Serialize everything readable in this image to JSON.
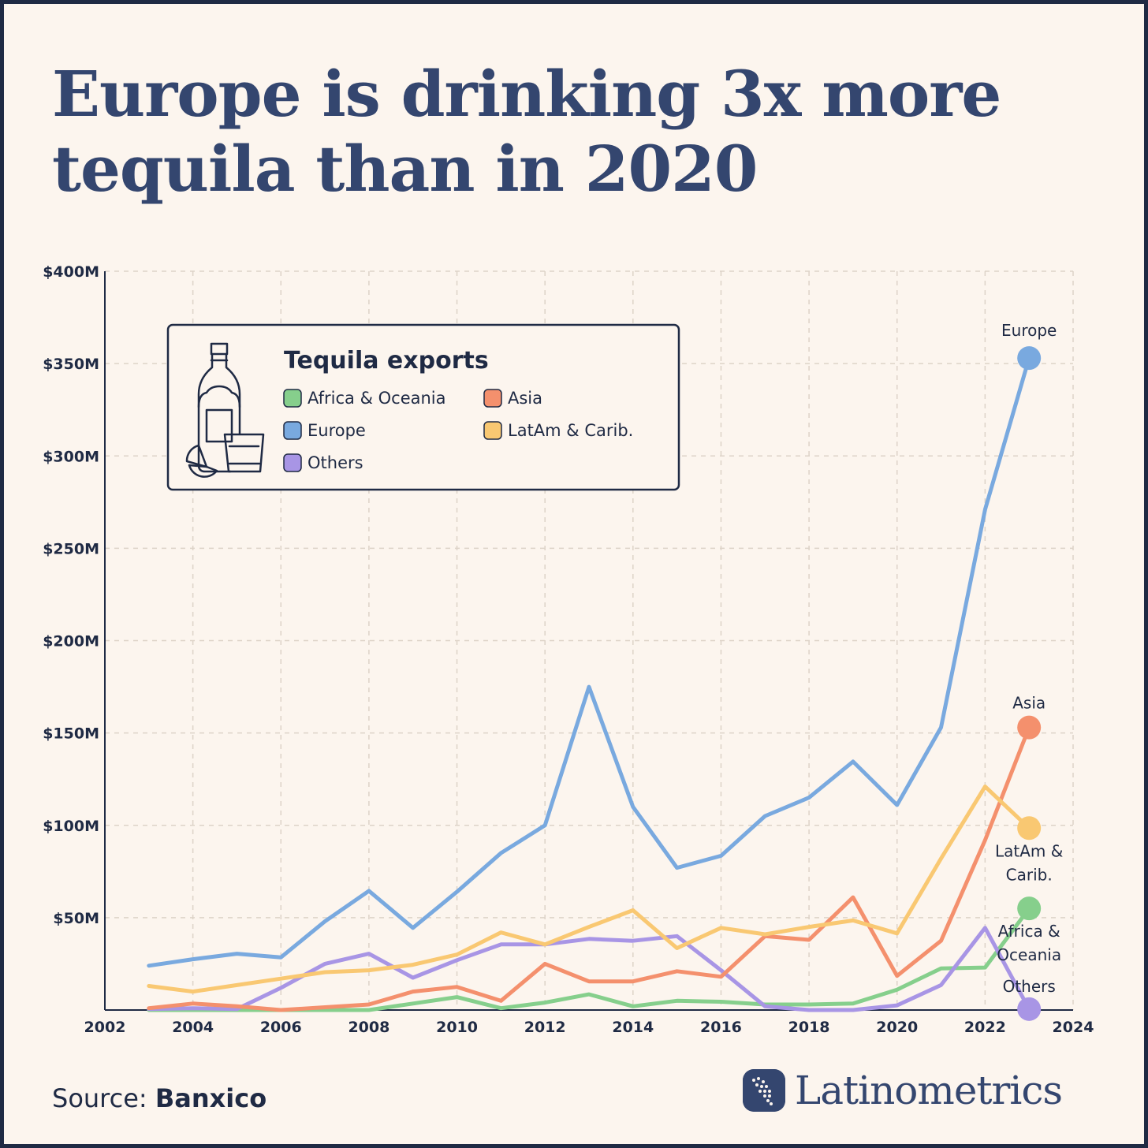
{
  "title": "Europe is drinking 3x more tequila than in 2020",
  "source_prefix": "Source: ",
  "source_name": "Banxico",
  "brand": "Latinometrics",
  "colors": {
    "background": "#fcf5ee",
    "frame": "#1f2a44",
    "title": "#34466f",
    "grid": "#ddd3c8"
  },
  "legend": {
    "title": "Tequila exports",
    "icon": "tequila-bottle-and-glass-icon",
    "items": [
      {
        "label": "Africa & Oceania",
        "color": "#86cf8c"
      },
      {
        "label": "Asia",
        "color": "#f4906d"
      },
      {
        "label": "Europe",
        "color": "#79a9df"
      },
      {
        "label": "LatAm & Carib.",
        "color": "#f9c872"
      },
      {
        "label": "Others",
        "color": "#a895e5"
      }
    ]
  },
  "chart_data": {
    "type": "line",
    "x": [
      2003,
      2004,
      2005,
      2006,
      2007,
      2008,
      2009,
      2010,
      2011,
      2012,
      2013,
      2014,
      2015,
      2016,
      2017,
      2018,
      2019,
      2020,
      2021,
      2022,
      2023
    ],
    "xlim": [
      2002,
      2024
    ],
    "ylim": [
      0,
      400
    ],
    "x_ticks": [
      2002,
      2004,
      2006,
      2008,
      2010,
      2012,
      2014,
      2016,
      2018,
      2020,
      2022,
      2024
    ],
    "x_tick_labels": [
      "2002",
      "2004",
      "2006",
      "2008",
      "2010",
      "2012",
      "2014",
      "2016",
      "2018",
      "2020",
      "2022",
      "2024"
    ],
    "y_ticks": [
      50,
      100,
      150,
      200,
      250,
      300,
      350,
      400
    ],
    "y_tick_labels": [
      "$50M",
      "$100M",
      "$150M",
      "$200M",
      "$250M",
      "$300M",
      "$350M",
      "$400M"
    ],
    "grid": true,
    "legend_position": "top-left",
    "series": [
      {
        "name": "Europe",
        "end_label": [
          "Europe"
        ],
        "color": "#79a9df",
        "values": [
          24,
          27.5,
          30.5,
          28.5,
          48,
          64.5,
          44.5,
          64,
          85,
          100,
          175,
          110,
          77,
          83.5,
          105,
          115,
          134.5,
          111,
          153,
          271,
          353
        ]
      },
      {
        "name": "Asia",
        "end_label": [
          "Asia"
        ],
        "color": "#f4906d",
        "values": [
          1,
          3.5,
          2,
          0,
          1.5,
          3,
          10,
          12.5,
          5,
          25,
          15.5,
          15.5,
          21,
          18,
          40,
          38,
          61,
          18.5,
          37.5,
          92,
          153
        ]
      },
      {
        "name": "LatAm & Carib.",
        "end_label": [
          "LatAm &",
          "Carib."
        ],
        "color": "#f9c872",
        "values": [
          13,
          10,
          13.5,
          17,
          20.5,
          21.5,
          24.5,
          30,
          42,
          35.5,
          45,
          54,
          33.5,
          44.5,
          41,
          45,
          48.5,
          41.5,
          82,
          121,
          98.5
        ]
      },
      {
        "name": "Africa & Oceania",
        "end_label": [
          "Africa &",
          "Oceania"
        ],
        "color": "#86cf8c",
        "values": [
          0,
          0,
          0,
          0,
          0,
          0,
          3.5,
          7,
          1,
          4,
          8.5,
          2,
          5,
          4.5,
          3,
          3,
          3.5,
          11,
          22.5,
          23,
          55
        ]
      },
      {
        "name": "Others",
        "end_label": [
          "Others"
        ],
        "color": "#a895e5",
        "values": [
          0.5,
          1,
          0.5,
          12,
          25,
          30.5,
          17.5,
          27,
          35.5,
          35.5,
          38.5,
          37.5,
          40,
          21.5,
          2,
          0,
          0,
          2.5,
          13.5,
          44.5,
          0.5
        ]
      }
    ]
  }
}
